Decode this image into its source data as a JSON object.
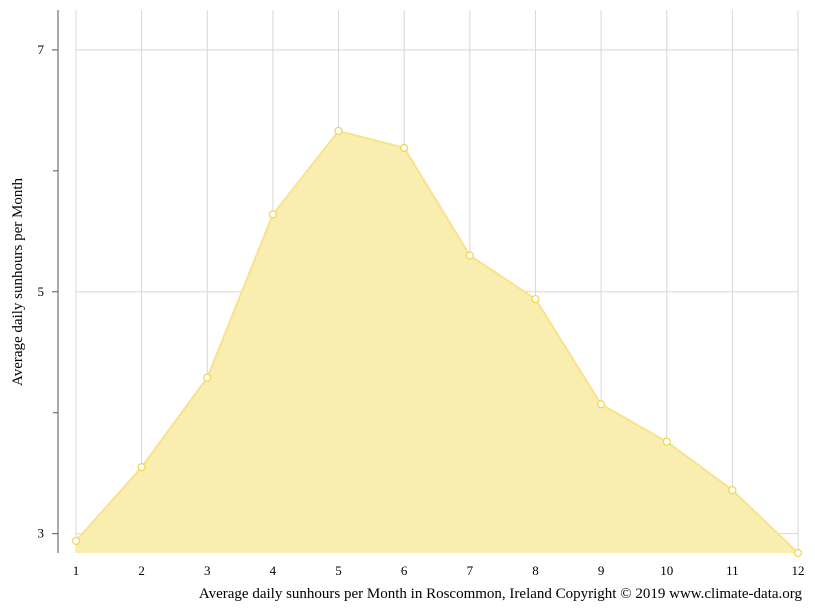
{
  "chart_data": {
    "type": "area",
    "title": "",
    "xlabel": "",
    "ylabel": "Average daily sunhours per Month",
    "caption": "Average daily sunhours per Month in Roscommon, Ireland Copyright © 2019 www.climate-data.org",
    "x": [
      1,
      2,
      3,
      4,
      5,
      6,
      7,
      8,
      9,
      10,
      11,
      12
    ],
    "x_tick_labels": [
      "1",
      "2",
      "3",
      "4",
      "5",
      "6",
      "7",
      "8",
      "9",
      "10",
      "11",
      "12"
    ],
    "y_tick_labels": [
      "7",
      "5",
      "3"
    ],
    "y_tick_values": [
      7,
      5,
      3
    ],
    "y_minor_ticks": [
      6,
      4
    ],
    "values": [
      2.94,
      3.55,
      4.29,
      5.64,
      6.33,
      6.19,
      5.3,
      4.94,
      4.07,
      3.76,
      3.36,
      2.84
    ],
    "xlim": [
      1,
      12
    ],
    "ylim": [
      2.84,
      7.33
    ],
    "grid": true,
    "colors": {
      "fill": "#faedb0",
      "line": "#f8e38c",
      "marker_fill": "#ffffff",
      "marker_stroke": "#efd64f",
      "grid": "#d8d8d8",
      "axis": "#555555"
    }
  }
}
